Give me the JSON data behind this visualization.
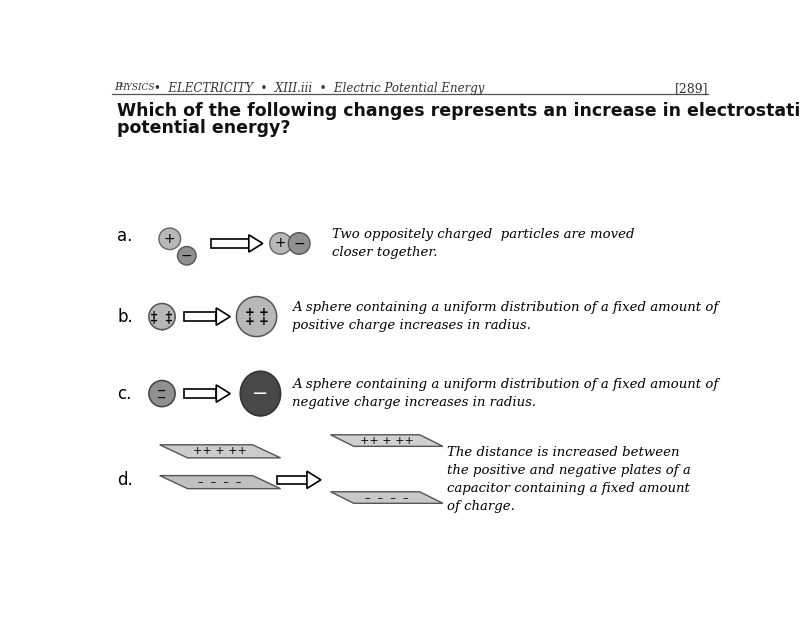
{
  "header_left": "Physics",
  "header_middle": "ELECTRICITY  •  XIII.iii  •  Electric Potential Energy",
  "header_right": "[289]",
  "title_line1": "Which of the following changes represents an increase in electrostatic",
  "title_line2": "potential energy?",
  "bg_color": "#ffffff",
  "options": [
    {
      "label": "a.",
      "description": "Two oppositely charged  particles are moved\ncloser together."
    },
    {
      "label": "b.",
      "description": "A sphere containing a uniform distribution of a fixed amount of\npositive charge increases in radius."
    },
    {
      "label": "c.",
      "description": "A sphere containing a uniform distribution of a fixed amount of\nnegative charge increases in radius."
    },
    {
      "label": "d.",
      "description": "The distance is increased between\nthe positive and negative plates of a\ncapacitor containing a fixed amount\nof charge."
    }
  ],
  "gray_light": "#b8b8b8",
  "gray_mid": "#909090",
  "gray_dark": "#606060",
  "gray_darker": "#484848"
}
